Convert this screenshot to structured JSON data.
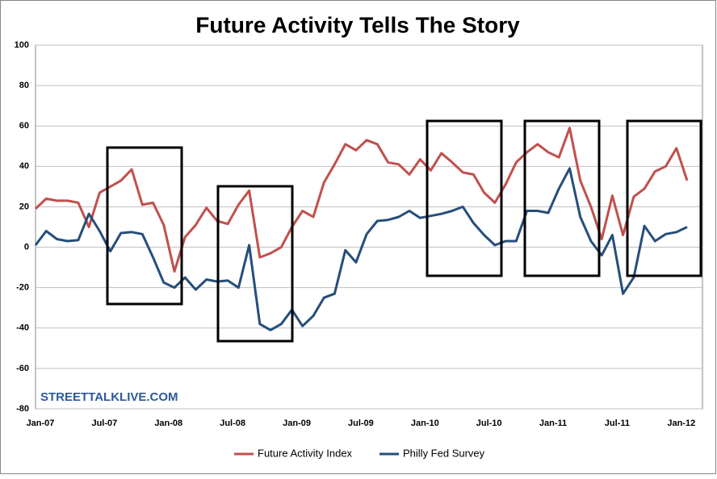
{
  "chart_data": {
    "type": "line",
    "title": "Future Activity Tells The Story",
    "watermark": "STREETTALKLIVE.COM",
    "categories": [
      "Jan-07",
      null,
      null,
      null,
      null,
      null,
      "Jul-07",
      null,
      null,
      null,
      null,
      null,
      "Jan-08",
      null,
      null,
      null,
      null,
      null,
      "Jul-08",
      null,
      null,
      null,
      null,
      null,
      "Jan-09",
      null,
      null,
      null,
      null,
      null,
      "Jul-09",
      null,
      null,
      null,
      null,
      null,
      "Jan-10",
      null,
      null,
      null,
      null,
      null,
      "Jul-10",
      null,
      null,
      null,
      null,
      null,
      "Jan-11",
      null,
      null,
      null,
      null,
      null,
      "Jul-11",
      null,
      null,
      null,
      null,
      null,
      "Jan-12",
      null
    ],
    "series": [
      {
        "name": "Future Activity Index",
        "color": "#c0504d",
        "values": [
          19,
          24,
          23,
          23,
          22,
          10,
          27,
          30,
          33,
          38.5,
          21,
          22,
          11,
          -12,
          5,
          11,
          19.5,
          13,
          11.5,
          21,
          28,
          -5,
          -3,
          0,
          10,
          18,
          15,
          32,
          41,
          51,
          48,
          53,
          51,
          42,
          41,
          36,
          43.5,
          38,
          46.5,
          42,
          37,
          36,
          27,
          22,
          31,
          42,
          47,
          51,
          47,
          44.5,
          59,
          33,
          20,
          4,
          25.5,
          6,
          25,
          29,
          37.5,
          40,
          49,
          33
        ]
      },
      {
        "name": "Philly Fed Survey",
        "color": "#254e7b",
        "values": [
          1,
          8,
          4,
          3,
          3.5,
          16.5,
          8,
          -2,
          7,
          7.5,
          6.5,
          -5,
          -17.5,
          -20,
          -15,
          -21,
          -16,
          -17,
          -16.5,
          -20,
          1,
          -38,
          -41,
          -38,
          -31,
          -39,
          -34,
          -25,
          -23,
          -1.5,
          -7.5,
          6.5,
          13,
          13.5,
          15,
          18,
          14.5,
          15.5,
          16.5,
          18,
          20,
          12,
          6,
          1,
          3,
          3,
          18,
          18,
          17,
          29,
          39,
          15,
          3,
          -4,
          6,
          -23,
          -15,
          10.5,
          3,
          6.5,
          7.5,
          10
        ]
      }
    ],
    "ylim": [
      -80,
      100
    ],
    "yticks": [
      -80,
      -60,
      -40,
      -20,
      0,
      20,
      40,
      60,
      80,
      100
    ],
    "grid": true,
    "legend": "bottom"
  }
}
